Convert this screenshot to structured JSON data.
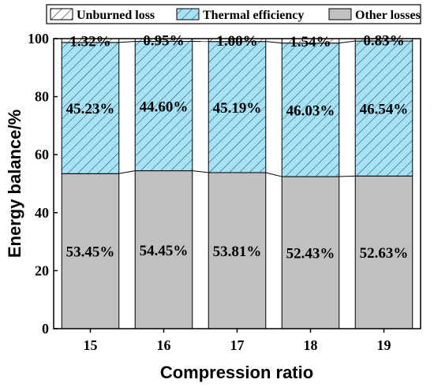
{
  "chart_data": {
    "type": "bar",
    "stacked": true,
    "categories": [
      "15",
      "16",
      "17",
      "18",
      "19"
    ],
    "series": [
      {
        "name": "Other losses",
        "values": [
          53.45,
          54.45,
          53.81,
          52.43,
          52.63
        ],
        "labels": [
          "53.45%",
          "54.45%",
          "53.81%",
          "52.43%",
          "52.63%"
        ],
        "color": "#c0c0c0",
        "pattern": "solid"
      },
      {
        "name": "Thermal efficiency",
        "values": [
          45.23,
          44.6,
          45.19,
          46.03,
          46.54
        ],
        "labels": [
          "45.23%",
          "44.60%",
          "45.19%",
          "46.03%",
          "46.54%"
        ],
        "color": "#a6e1f5",
        "pattern": "hatch"
      },
      {
        "name": "Unburned loss",
        "values": [
          1.32,
          0.95,
          1.0,
          1.54,
          0.83
        ],
        "labels": [
          "1.32%",
          "0.95%",
          "1.00%",
          "1.54%",
          "0.83%"
        ],
        "color": "#ffffff",
        "pattern": "hatch"
      }
    ],
    "legend_order": [
      "Unburned loss",
      "Thermal efficiency",
      "Other losses"
    ],
    "xlabel": "Compression ratio",
    "ylabel": "Energy balance/%",
    "ylim": [
      0,
      100
    ],
    "yticks": [
      0,
      20,
      40,
      60,
      80,
      100
    ],
    "legend_position": "top",
    "grid": false
  }
}
